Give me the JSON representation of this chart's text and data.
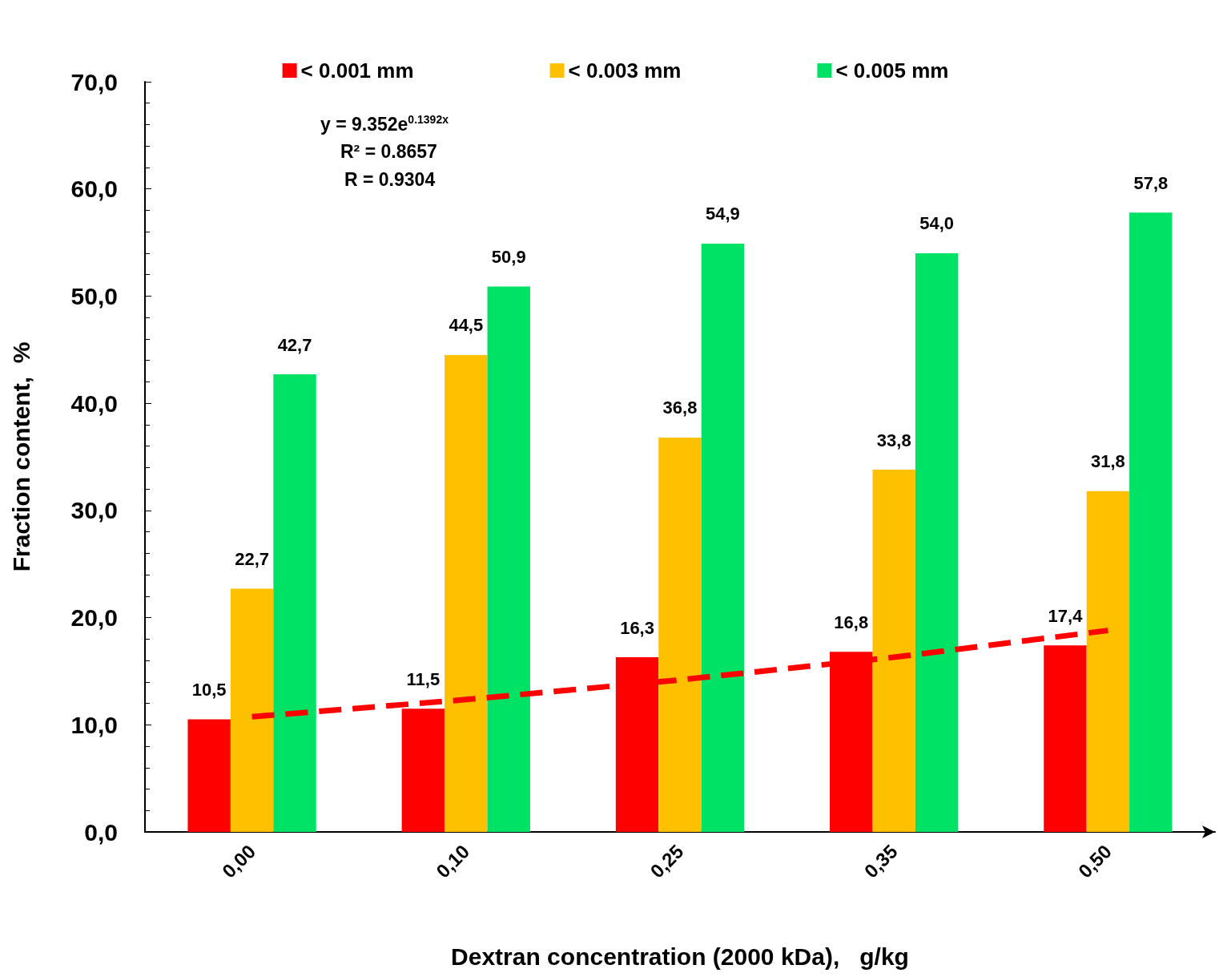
{
  "chart_data": {
    "type": "bar",
    "xlabel": "Dextran concentration (2000 kDa),   g/kg",
    "ylabel": "Fraction content,  %",
    "categories": [
      "0,00",
      "0,10",
      "0,25",
      "0,35",
      "0,50"
    ],
    "series": [
      {
        "name": "< 0.001 mm",
        "color": "#ff0000",
        "values": [
          10.5,
          11.5,
          16.3,
          16.8,
          17.4
        ],
        "value_labels": [
          "10,5",
          "11,5",
          "16,3",
          "16,8",
          "17,4"
        ]
      },
      {
        "name": "< 0.003 mm",
        "color": "#ffc000",
        "values": [
          22.7,
          44.5,
          36.8,
          33.8,
          31.8
        ],
        "value_labels": [
          "22,7",
          "44,5",
          "36,8",
          "33,8",
          "31,8"
        ]
      },
      {
        "name": "< 0.005 mm",
        "color": "#00e266",
        "values": [
          42.7,
          50.9,
          54.9,
          54.0,
          57.8
        ],
        "value_labels": [
          "42,7",
          "50,9",
          "54,9",
          "54,0",
          "57,8"
        ]
      },
      {
        "type": "line",
        "color": "#ff0000",
        "line_style": "dashed",
        "marker": "none",
        "x": [
          "0,00",
          "0,10",
          "0,25",
          "0,35",
          "0,50"
        ],
        "values": [
          10.75,
          12.35,
          14.19,
          16.3,
          18.8
        ]
      }
    ],
    "ylim": [
      0,
      70
    ],
    "yticks": [
      {
        "value": 0,
        "label": "0,0"
      },
      {
        "value": 10,
        "label": "10,0"
      },
      {
        "value": 20,
        "label": "20,0"
      },
      {
        "value": 30,
        "label": "30,0"
      },
      {
        "value": 40,
        "label": "40,0"
      },
      {
        "value": 50,
        "label": "50,0"
      },
      {
        "value": 60,
        "label": "60,0"
      },
      {
        "value": 70,
        "label": "70,0"
      }
    ],
    "grid": false,
    "legend": "top",
    "annotations": [
      "y = 9.352e$^{0.1392x}$",
      "R² = 0.8657",
      "R = 0.9304"
    ]
  }
}
